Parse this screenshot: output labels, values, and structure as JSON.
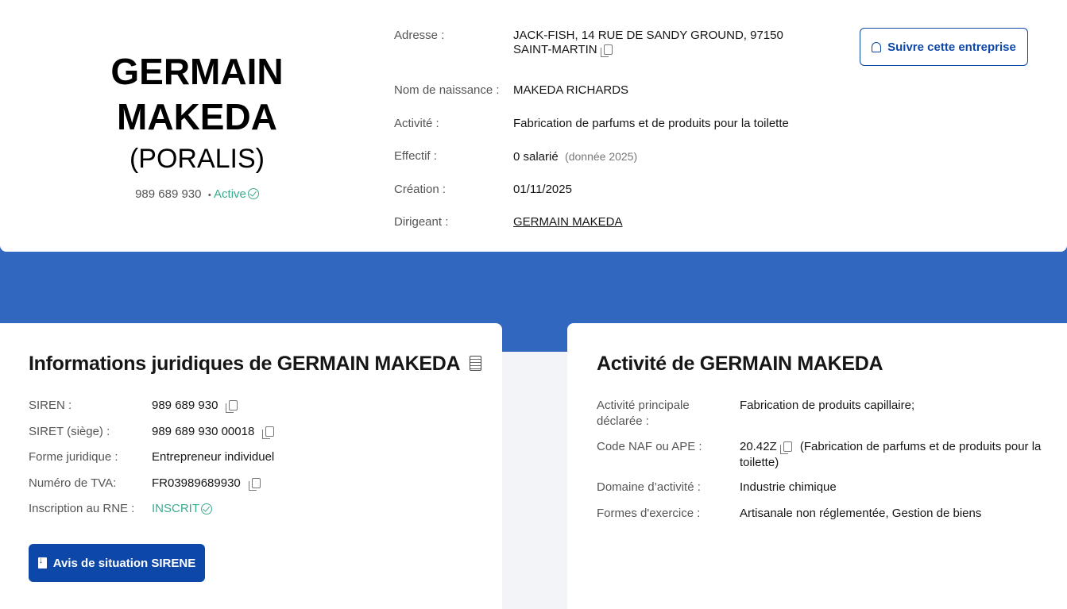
{
  "header": {
    "name_line1": "GERMAIN",
    "name_line2": "MAKEDA",
    "alias": "(PORALIS)",
    "siren": "989 689 930",
    "separator": "•",
    "status": "Active",
    "follow_label": "Suivre cette entreprise",
    "facts": [
      {
        "label": "Adresse :",
        "value": "JACK-FISH, 14 RUE DE SANDY GROUND, 97150 SAINT-MARTIN"
      },
      {
        "label": "Nom de naissance :",
        "value": "MAKEDA RICHARDS"
      },
      {
        "label": "Activité :",
        "value": "Fabrication de parfums et de produits pour la toilette"
      },
      {
        "label": "Effectif :",
        "value": "0 salarié",
        "note": "(donnée 2025)"
      },
      {
        "label": "Création :",
        "value": "01/11/2025"
      },
      {
        "label": "Dirigeant :",
        "value": "GERMAIN MAKEDA"
      }
    ]
  },
  "legal": {
    "title": "Informations juridiques de GERMAIN MAKEDA",
    "rows": [
      {
        "label": "SIREN :",
        "value": "989 689 930"
      },
      {
        "label": "SIRET (siège) :",
        "value": "989 689 930 00018"
      },
      {
        "label": "Forme juridique :",
        "value": "Entrepreneur individuel"
      },
      {
        "label": "Numéro de TVA:",
        "value": "FR03989689930"
      },
      {
        "label": "Inscription au RNE :",
        "value": "INSCRIT"
      }
    ],
    "button_label": "Avis de situation SIRENE"
  },
  "activity": {
    "title": "Activité de GERMAIN MAKEDA",
    "rows": [
      {
        "label": "Activité principale déclarée :",
        "value": "Fabrication de produits capillaire;"
      },
      {
        "label": "Code NAF ou APE :",
        "value": "20.42Z",
        "note": "(Fabrication de parfums et de produits pour la toilette)"
      },
      {
        "label": "Domaine d’activité :",
        "value": "Industrie chimique"
      },
      {
        "label": "Formes d'exercice :",
        "value": "Artisanale non réglementée, Gestion de biens"
      }
    ]
  },
  "colors": {
    "band": "#3167bf",
    "primary": "#0d47a8",
    "success": "#3bab90"
  }
}
